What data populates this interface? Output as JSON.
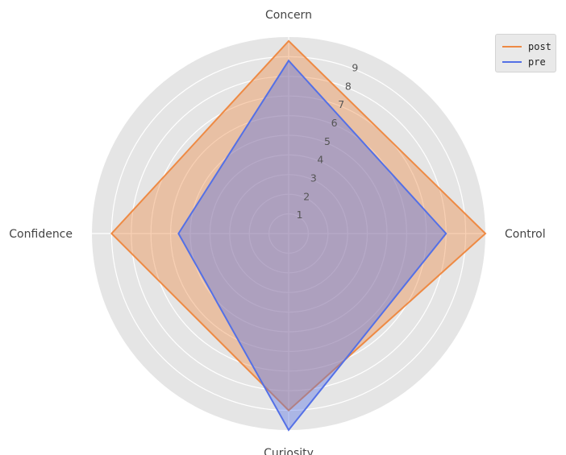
{
  "chart_data": {
    "type": "radar",
    "axes": [
      "Concern",
      "Control",
      "Curiosity",
      "Confidence"
    ],
    "radial_ticks": [
      "1",
      "2",
      "3",
      "4",
      "5",
      "6",
      "7",
      "8",
      "9"
    ],
    "rmax": 10,
    "series": [
      {
        "name": "post",
        "values": [
          9.8,
          10,
          9,
          9
        ],
        "color": "#ee8a44"
      },
      {
        "name": "pre",
        "values": [
          8.8,
          8,
          10,
          5.6
        ],
        "color": "#5470e6"
      }
    ],
    "legend_position": "top-right",
    "background_color": "#e5e5e5",
    "grid_color": "#ffffff"
  }
}
